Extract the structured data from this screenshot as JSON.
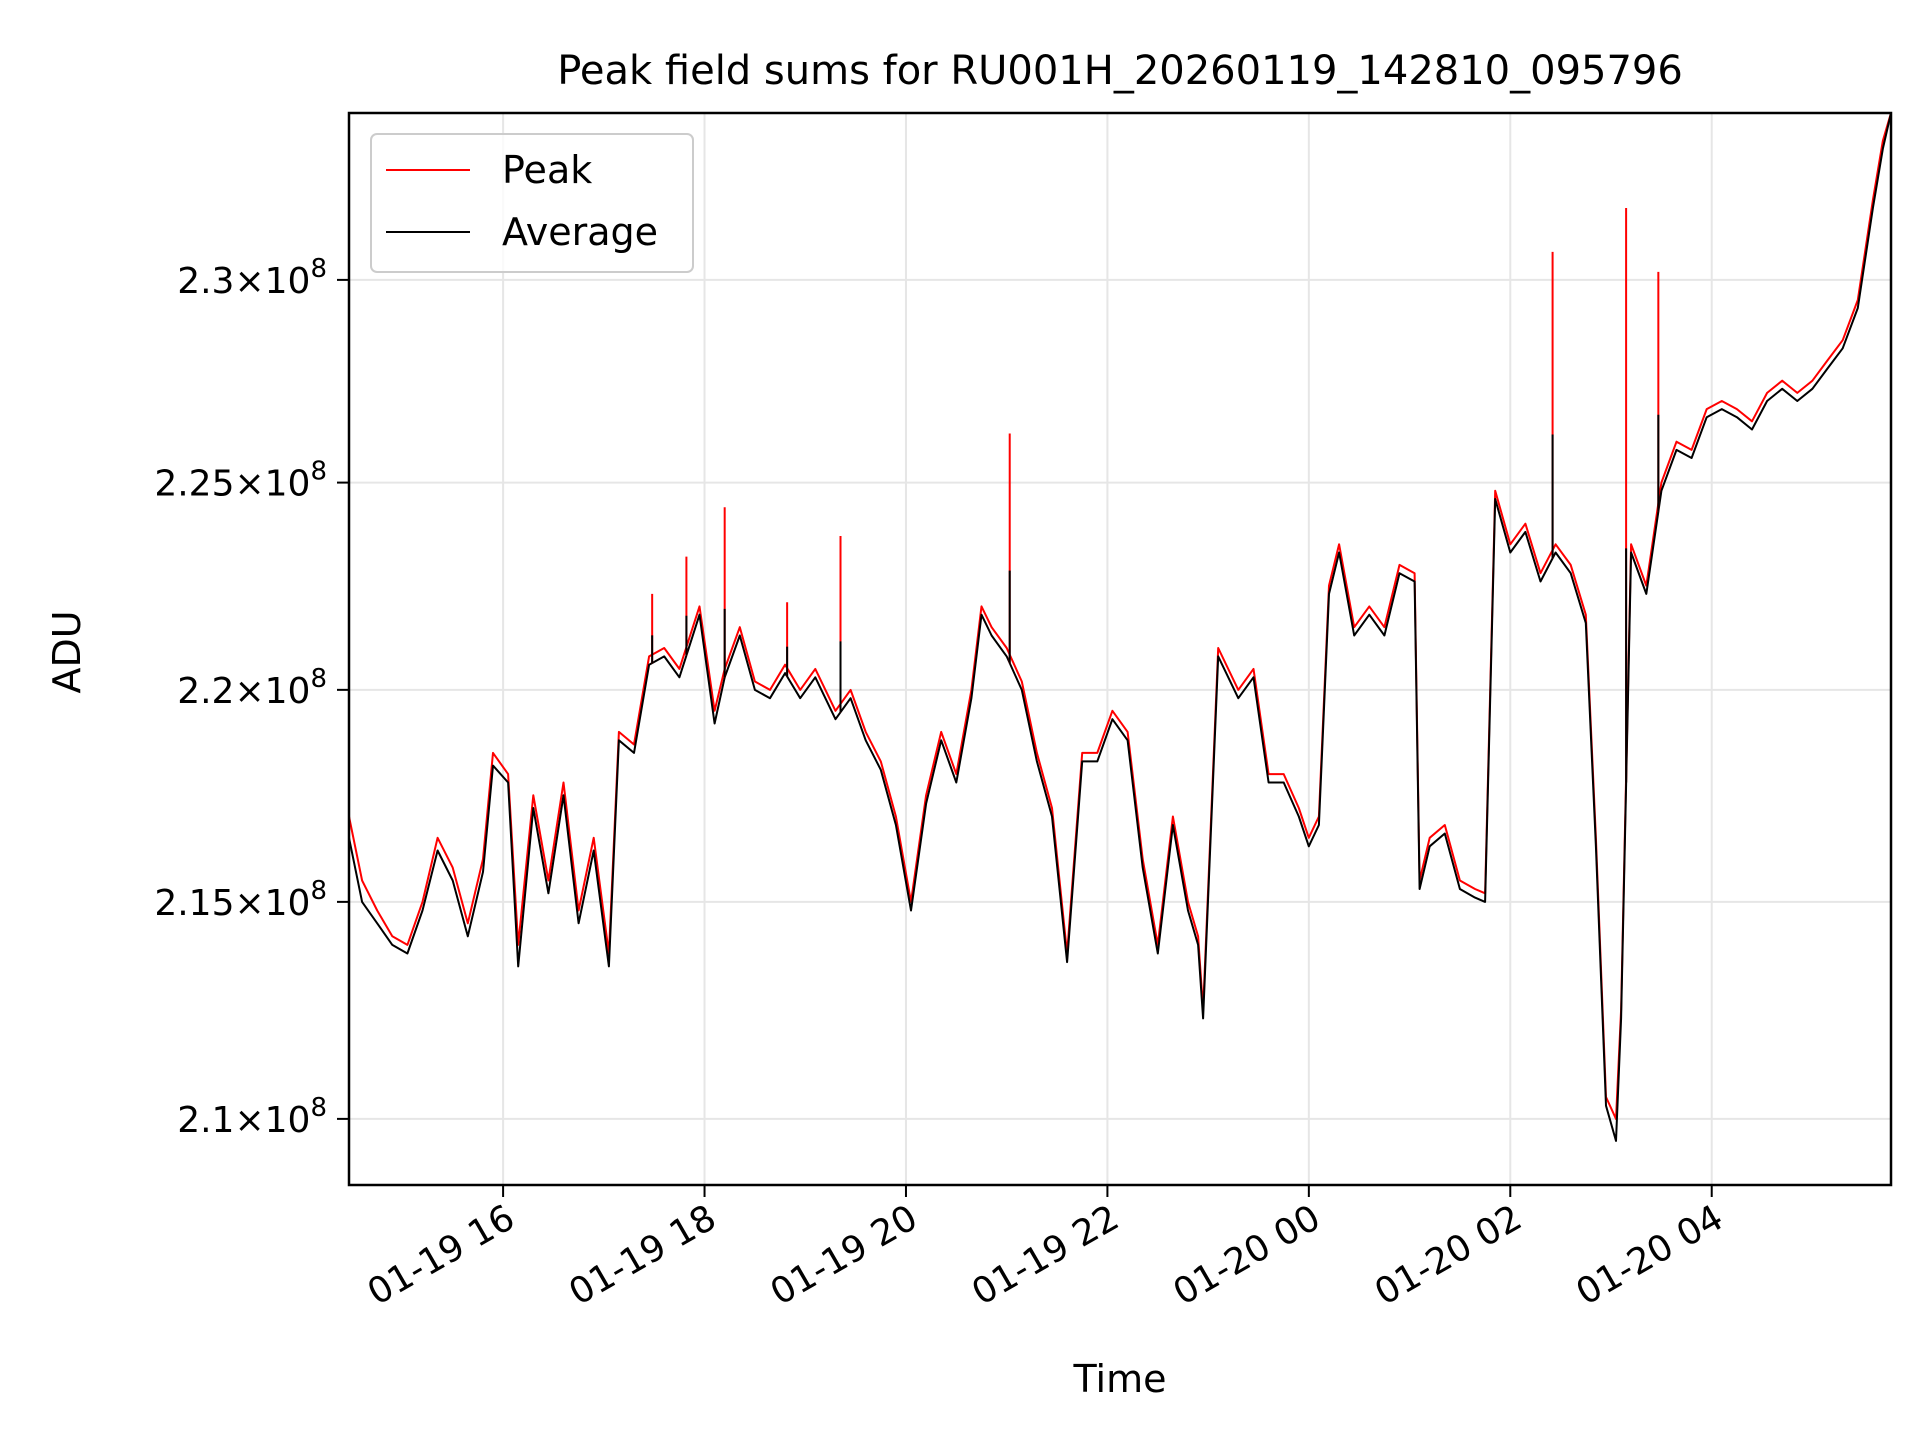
{
  "chart_data": {
    "type": "line",
    "title": "Peak field sums for RU001H_20260119_142810_095796",
    "xlabel": "Time",
    "ylabel": "ADU",
    "yscale": "log",
    "grid": true,
    "legend_position": "top-left",
    "xlim_hours": [
      14.47,
      29.78
    ],
    "ylim": [
      208500000,
      234200000
    ],
    "x_ticks": [
      {
        "hour": 16,
        "label": "01-19 16"
      },
      {
        "hour": 18,
        "label": "01-19 18"
      },
      {
        "hour": 20,
        "label": "01-19 20"
      },
      {
        "hour": 22,
        "label": "01-19 22"
      },
      {
        "hour": 24,
        "label": "01-20 00"
      },
      {
        "hour": 26,
        "label": "01-20 02"
      },
      {
        "hour": 28,
        "label": "01-20 04"
      }
    ],
    "y_ticks": [
      {
        "value": 210000000,
        "mantissa": "2.1",
        "exponent": "8"
      },
      {
        "value": 215000000,
        "mantissa": "2.15",
        "exponent": "8"
      },
      {
        "value": 220000000,
        "mantissa": "2.2",
        "exponent": "8"
      },
      {
        "value": 225000000,
        "mantissa": "2.25",
        "exponent": "8"
      },
      {
        "value": 230000000,
        "mantissa": "2.3",
        "exponent": "8"
      }
    ],
    "times_symbol": "×",
    "tick_base": "10",
    "x_hours": [
      14.47,
      14.6,
      14.75,
      14.9,
      15.05,
      15.2,
      15.35,
      15.5,
      15.65,
      15.8,
      15.9,
      16.05,
      16.15,
      16.3,
      16.45,
      16.6,
      16.75,
      16.9,
      17.05,
      17.15,
      17.3,
      17.45,
      17.6,
      17.75,
      17.95,
      18.1,
      18.2,
      18.35,
      18.5,
      18.65,
      18.8,
      18.95,
      19.1,
      19.3,
      19.45,
      19.6,
      19.75,
      19.9,
      20.05,
      20.2,
      20.35,
      20.5,
      20.65,
      20.75,
      20.85,
      21,
      21.15,
      21.3,
      21.45,
      21.6,
      21.75,
      21.9,
      22.05,
      22.2,
      22.35,
      22.5,
      22.65,
      22.8,
      22.9,
      22.95,
      23.1,
      23.3,
      23.45,
      23.6,
      23.75,
      23.9,
      24,
      24.1,
      24.2,
      24.3,
      24.45,
      24.6,
      24.75,
      24.9,
      25.05,
      25.1,
      25.2,
      25.35,
      25.5,
      25.65,
      25.75,
      25.85,
      26,
      26.15,
      26.3,
      26.45,
      26.6,
      26.75,
      26.85,
      26.95,
      27.05,
      27.1,
      27.2,
      27.35,
      27.5,
      27.65,
      27.8,
      27.95,
      28.1,
      28.25,
      28.4,
      28.55,
      28.7,
      28.85,
      29,
      29.15,
      29.3,
      29.45,
      29.6,
      29.7,
      29.78
    ],
    "series": [
      {
        "name": "Peak",
        "color": "#ff0000",
        "values": [
          217000000,
          215500000,
          214800000,
          214200000,
          214000000,
          215000000,
          216500000,
          215800000,
          214500000,
          216000000,
          218500000,
          218000000,
          214000000,
          217500000,
          215500000,
          217800000,
          214800000,
          216500000,
          213800000,
          219000000,
          218700000,
          220800000,
          221000000,
          220500000,
          222000000,
          219500000,
          220500000,
          221500000,
          220200000,
          220000000,
          220600000,
          220000000,
          220500000,
          219500000,
          220000000,
          219000000,
          218300000,
          217000000,
          215000000,
          217500000,
          219000000,
          218000000,
          220000000,
          222000000,
          221500000,
          221000000,
          220200000,
          218500000,
          217200000,
          213800000,
          218500000,
          218500000,
          219500000,
          219000000,
          216000000,
          214000000,
          217000000,
          215000000,
          214200000,
          212500000,
          221000000,
          220000000,
          220500000,
          218000000,
          218000000,
          217200000,
          216500000,
          217000000,
          222500000,
          223500000,
          221500000,
          222000000,
          221500000,
          223000000,
          222800000,
          215500000,
          216500000,
          216800000,
          215500000,
          215300000,
          215200000,
          224800000,
          223500000,
          224000000,
          222800000,
          223500000,
          223000000,
          221800000,
          216500000,
          210500000,
          210000000,
          212500000,
          223500000,
          222500000,
          225000000,
          226000000,
          225800000,
          226800000,
          227000000,
          226800000,
          226500000,
          227200000,
          227500000,
          227200000,
          227500000,
          228000000,
          228500000,
          229500000,
          232000000,
          233500000,
          234200000
        ]
      },
      {
        "name": "Average",
        "color": "#000000",
        "values": [
          216500000,
          215000000,
          214500000,
          214000000,
          213800000,
          214800000,
          216200000,
          215500000,
          214200000,
          215700000,
          218200000,
          217800000,
          213500000,
          217200000,
          215200000,
          217500000,
          214500000,
          216200000,
          213500000,
          218800000,
          218500000,
          220600000,
          220800000,
          220300000,
          221800000,
          219200000,
          220300000,
          221300000,
          220000000,
          219800000,
          220400000,
          219800000,
          220300000,
          219300000,
          219800000,
          218800000,
          218100000,
          216800000,
          214800000,
          217300000,
          218800000,
          217800000,
          219800000,
          221800000,
          221300000,
          220800000,
          220000000,
          218300000,
          217000000,
          213600000,
          218300000,
          218300000,
          219300000,
          218800000,
          215800000,
          213800000,
          216800000,
          214800000,
          214000000,
          212300000,
          220800000,
          219800000,
          220300000,
          217800000,
          217800000,
          217000000,
          216300000,
          216800000,
          222300000,
          223300000,
          221300000,
          221800000,
          221300000,
          222800000,
          222600000,
          215300000,
          216300000,
          216600000,
          215300000,
          215100000,
          215000000,
          224600000,
          223300000,
          223800000,
          222600000,
          223300000,
          222800000,
          221600000,
          216300000,
          210300000,
          209500000,
          212300000,
          223300000,
          222300000,
          224800000,
          225800000,
          225600000,
          226600000,
          226800000,
          226600000,
          226300000,
          227000000,
          227300000,
          227000000,
          227300000,
          227800000,
          228300000,
          229300000,
          231800000,
          233300000,
          234200000
        ]
      }
    ],
    "spikes": [
      {
        "series": "Peak",
        "hour": 17.48,
        "value": 222300000
      },
      {
        "series": "Peak",
        "hour": 17.82,
        "value": 223200000
      },
      {
        "series": "Peak",
        "hour": 18.2,
        "value": 224400000
      },
      {
        "series": "Peak",
        "hour": 18.82,
        "value": 222100000
      },
      {
        "series": "Peak",
        "hour": 19.35,
        "value": 223700000
      },
      {
        "series": "Peak",
        "hour": 21.03,
        "value": 226200000
      },
      {
        "series": "Peak",
        "hour": 26.42,
        "value": 230700000
      },
      {
        "series": "Peak",
        "hour": 27.15,
        "value": 231800000
      },
      {
        "series": "Peak",
        "hour": 27.47,
        "value": 230200000
      }
    ]
  }
}
